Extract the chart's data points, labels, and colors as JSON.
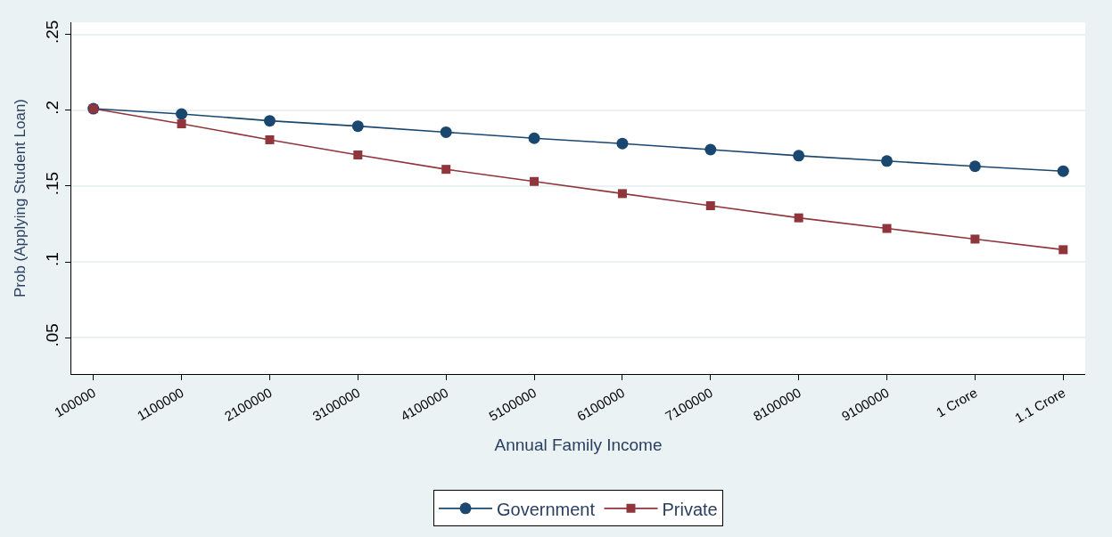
{
  "chart_data": {
    "type": "line",
    "xlabel": "Annual Family Income",
    "ylabel": "Prob (Applying Student Loan)",
    "categories": [
      "100000",
      "1100000",
      "2100000",
      "3100000",
      "4100000",
      "5100000",
      "6100000",
      "7100000",
      "8100000",
      "9100000",
      "1 Crore",
      "1.1 Crore"
    ],
    "series": [
      {
        "name": "Government",
        "color": "#1a476f",
        "marker": "circle",
        "values": [
          0.201,
          0.1975,
          0.193,
          0.1895,
          0.1855,
          0.1815,
          0.178,
          0.174,
          0.17,
          0.1665,
          0.163,
          0.1598
        ]
      },
      {
        "name": "Private",
        "color": "#90353b",
        "marker": "square",
        "values": [
          0.201,
          0.191,
          0.1805,
          0.1705,
          0.161,
          0.153,
          0.145,
          0.137,
          0.129,
          0.122,
          0.115,
          0.108
        ]
      }
    ],
    "ylim": [
      0.026,
      0.258
    ],
    "yticks": [
      {
        "value": 0.05,
        "label": ".05"
      },
      {
        "value": 0.1,
        "label": ".1"
      },
      {
        "value": 0.15,
        "label": ".15"
      },
      {
        "value": 0.2,
        "label": ".2"
      },
      {
        "value": 0.25,
        "label": ".25"
      }
    ],
    "grid": "y",
    "legend": "bottom"
  }
}
